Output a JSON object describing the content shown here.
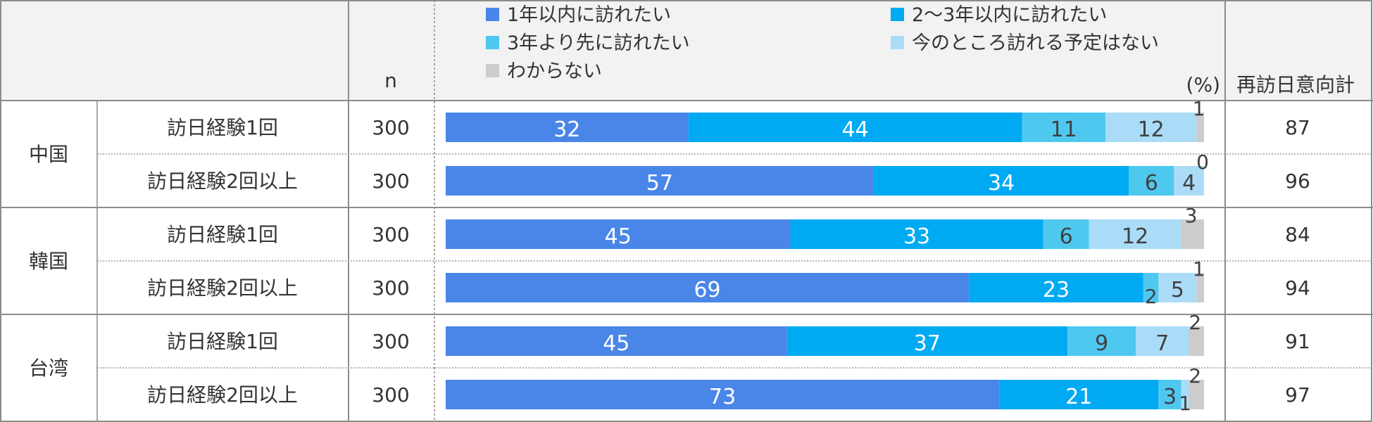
{
  "header": {
    "n_label": "n",
    "unit_label": "(%)",
    "revisit_label": "再訪日意向計"
  },
  "legend": [
    {
      "label": "1年以内に訪れたい",
      "color": "#4a86e8"
    },
    {
      "label": "2～3年以内に訪れたい",
      "color": "#00aaf2"
    },
    {
      "label": "3年より先に訪れたい",
      "color": "#4fc8f0"
    },
    {
      "label": "今のところ訪れる予定はない",
      "color": "#aadcf8"
    },
    {
      "label": "わからない",
      "color": "#cccccc"
    }
  ],
  "groups": [
    {
      "name": "中国",
      "rows": [
        0,
        1
      ]
    },
    {
      "name": "韓国",
      "rows": [
        2,
        3
      ]
    },
    {
      "name": "台湾",
      "rows": [
        4,
        5
      ]
    }
  ],
  "chart_data": {
    "type": "bar",
    "orientation": "horizontal",
    "stacked": true,
    "unit": "%",
    "categories": [
      "訪日経験1回",
      "訪日経験2回以上",
      "訪日経験1回",
      "訪日経験2回以上",
      "訪日経験1回",
      "訪日経験2回以上"
    ],
    "n": [
      300,
      300,
      300,
      300,
      300,
      300
    ],
    "revisit_total": [
      87,
      96,
      84,
      94,
      91,
      97
    ],
    "series": [
      {
        "name": "1年以内に訪れたい",
        "values": [
          32,
          57,
          45,
          69,
          45,
          73
        ]
      },
      {
        "name": "2～3年以内に訪れたい",
        "values": [
          44,
          34,
          33,
          23,
          37,
          21
        ]
      },
      {
        "name": "3年より先に訪れたい",
        "values": [
          11,
          6,
          6,
          2,
          9,
          3
        ]
      },
      {
        "name": "今のところ訪れる予定はない",
        "values": [
          12,
          4,
          12,
          5,
          7,
          1
        ]
      },
      {
        "name": "わからない",
        "values": [
          1,
          0,
          3,
          1,
          2,
          2
        ]
      }
    ],
    "xlim": [
      0,
      100
    ]
  }
}
